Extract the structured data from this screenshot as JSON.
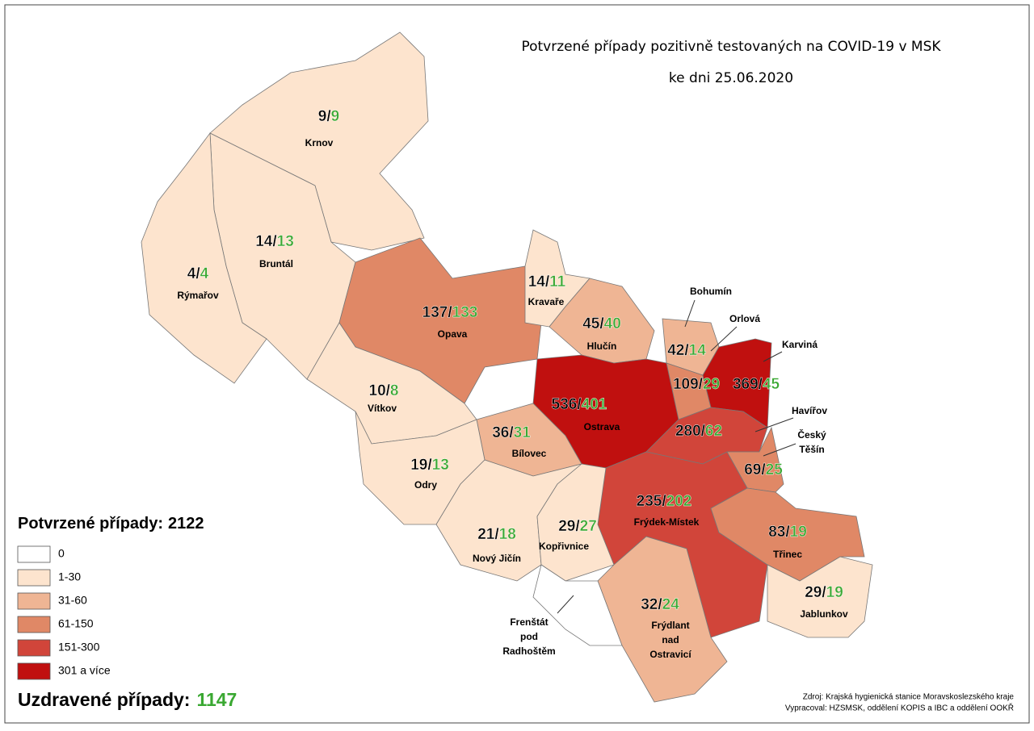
{
  "title": [
    "Potvrzené případy pozitivně testovaných na COVID-19 v MSK",
    "ke dni 25.06.2020"
  ],
  "separator": "/",
  "confirmed_color": "#000000",
  "recovered_color": "#3aa832",
  "regions": [
    {
      "name": [
        "Krnov"
      ],
      "confirmed": 9,
      "recovered": 9,
      "color": "#fde4ce"
    },
    {
      "name": [
        "Bruntál"
      ],
      "confirmed": 14,
      "recovered": 13,
      "color": "#fde4ce"
    },
    {
      "name": [
        "Rýmařov"
      ],
      "confirmed": 4,
      "recovered": 4,
      "color": "#fde4ce"
    },
    {
      "name": [
        "Opava"
      ],
      "confirmed": 137,
      "recovered": 133,
      "color": "#e08866"
    },
    {
      "name": [
        "Kravaře"
      ],
      "confirmed": 14,
      "recovered": 11,
      "color": "#fde4ce"
    },
    {
      "name": [
        "Hlučín"
      ],
      "confirmed": 45,
      "recovered": 40,
      "color": "#efb594"
    },
    {
      "name": [
        "Bohumín"
      ],
      "confirmed": 42,
      "recovered": 14,
      "color": "#efb594"
    },
    {
      "name": [
        "Orlová"
      ],
      "confirmed": 109,
      "recovered": 29,
      "color": "#e08866"
    },
    {
      "name": [
        "Karviná"
      ],
      "confirmed": 369,
      "recovered": 45,
      "color": "#c0100f"
    },
    {
      "name": [
        "Vítkov"
      ],
      "confirmed": 10,
      "recovered": 8,
      "color": "#fde4ce"
    },
    {
      "name": [
        "Ostrava"
      ],
      "confirmed": 536,
      "recovered": 401,
      "color": "#c0100f"
    },
    {
      "name": [
        "Havířov"
      ],
      "confirmed": 280,
      "recovered": 62,
      "color": "#d1453a"
    },
    {
      "name": [
        "Český",
        "Těšín"
      ],
      "confirmed": 69,
      "recovered": 25,
      "color": "#e08866"
    },
    {
      "name": [
        "Bílovec"
      ],
      "confirmed": 36,
      "recovered": 31,
      "color": "#efb594"
    },
    {
      "name": [
        "Odry"
      ],
      "confirmed": 19,
      "recovered": 13,
      "color": "#fde4ce"
    },
    {
      "name": [
        "Frýdek-Místek"
      ],
      "confirmed": 235,
      "recovered": 202,
      "color": "#d1453a"
    },
    {
      "name": [
        "Nový Jičín"
      ],
      "confirmed": 21,
      "recovered": 18,
      "color": "#fde4ce"
    },
    {
      "name": [
        "Kopřivnice"
      ],
      "confirmed": 29,
      "recovered": 27,
      "color": "#fde4ce"
    },
    {
      "name": [
        "Třinec"
      ],
      "confirmed": 83,
      "recovered": 19,
      "color": "#e08866"
    },
    {
      "name": [
        "Jablunkov"
      ],
      "confirmed": 29,
      "recovered": 19,
      "color": "#fde4ce"
    },
    {
      "name": [
        "Frýdlant",
        "nad",
        "Ostravicí"
      ],
      "confirmed": 32,
      "recovered": 24,
      "color": "#efb594"
    },
    {
      "name": [
        "Frenštát",
        "pod",
        "Radhoštěm"
      ],
      "color": "#ffffff"
    }
  ],
  "legend": {
    "title": "Potvrzené případy:",
    "total": 2122,
    "items": [
      {
        "label": "0",
        "color": "#ffffff"
      },
      {
        "label": "1-30",
        "color": "#fde4ce"
      },
      {
        "label": "31-60",
        "color": "#efb594"
      },
      {
        "label": "61-150",
        "color": "#e08866"
      },
      {
        "label": "151-300",
        "color": "#d1453a"
      },
      {
        "label": "301 a více",
        "color": "#c0100f"
      }
    ]
  },
  "recovered_total": {
    "label": "Uzdravené případy:",
    "total": 1147
  },
  "source": [
    "Zdroj: Krajská hygienická stanice Moravskoslezského kraje",
    "Vypracoval: HZSMSK, oddělení KOPIS a IBC a oddělení OOKŘ"
  ]
}
